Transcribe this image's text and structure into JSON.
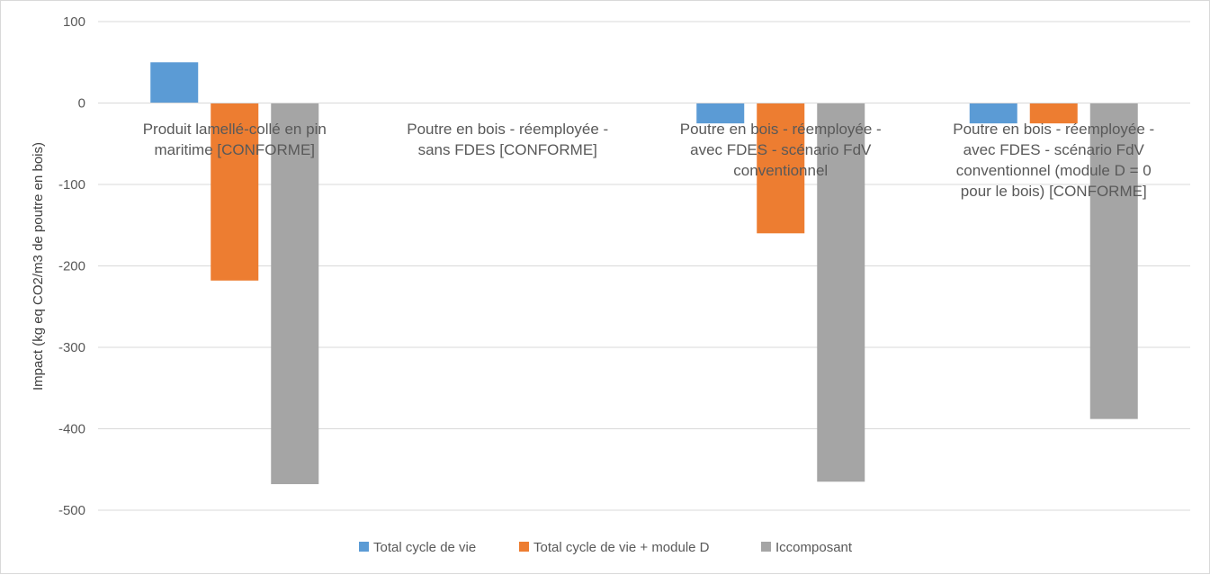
{
  "chart_data": {
    "type": "bar",
    "ylabel": "Impact (kg eq CO2/m3 de poutre en bois)",
    "xlabel": "",
    "ylim": [
      -500,
      100
    ],
    "yticks": [
      100,
      0,
      -100,
      -200,
      -300,
      -400,
      -500
    ],
    "grid": true,
    "legend_position": "bottom",
    "categories": [
      [
        "Produit lamellé-collé en pin",
        "maritime [CONFORME]"
      ],
      [
        "Poutre en bois - réemployée -",
        "sans FDES [CONFORME]"
      ],
      [
        "Poutre en bois - réemployée -",
        "avec FDES - scénario FdV",
        "conventionnel"
      ],
      [
        "Poutre en bois - réemployée -",
        "avec FDES - scénario FdV",
        "conventionnel (module D = 0",
        "pour le bois) [CONFORME]"
      ]
    ],
    "series": [
      {
        "name": "Total cycle de vie",
        "color": "#5b9bd5",
        "values": [
          50,
          0,
          -25,
          -25
        ]
      },
      {
        "name": "Total cycle de vie + module D",
        "color": "#ed7d31",
        "values": [
          -218,
          0,
          -160,
          -25
        ]
      },
      {
        "name": "Iccomposant",
        "color": "#a5a5a5",
        "values": [
          -468,
          0,
          -465,
          -388
        ]
      }
    ]
  }
}
